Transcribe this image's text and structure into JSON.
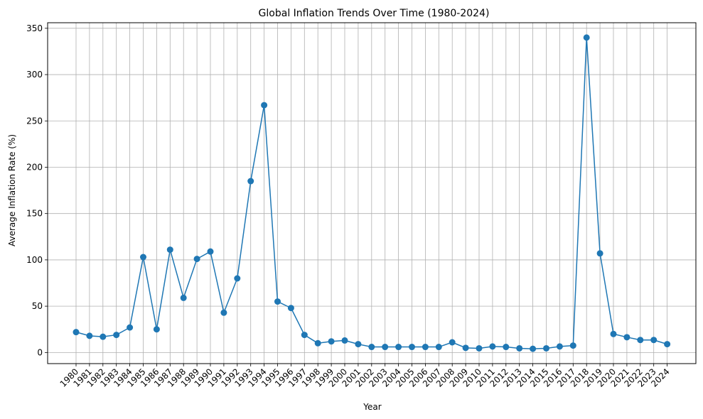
{
  "chart_data": {
    "type": "line",
    "title": "Global Inflation Trends Over Time (1980-2024)",
    "xlabel": "Year",
    "ylabel": "Average Inflation Rate (%)",
    "x": [
      "1980",
      "1981",
      "1982",
      "1983",
      "1984",
      "1985",
      "1986",
      "1987",
      "1988",
      "1989",
      "1990",
      "1991",
      "1992",
      "1993",
      "1994",
      "1995",
      "1996",
      "1997",
      "1998",
      "1999",
      "2000",
      "2001",
      "2002",
      "2003",
      "2004",
      "2005",
      "2006",
      "2007",
      "2008",
      "2009",
      "2010",
      "2011",
      "2012",
      "2013",
      "2014",
      "2015",
      "2016",
      "2017",
      "2018",
      "2019",
      "2020",
      "2021",
      "2022",
      "2023",
      "2024"
    ],
    "series": [
      {
        "values": [
          22,
          18,
          17,
          19,
          27,
          103,
          25,
          111,
          59,
          101,
          109,
          43,
          80,
          185,
          267,
          55,
          48,
          19,
          10,
          12,
          13,
          9,
          6,
          6,
          6,
          6,
          6,
          6,
          11,
          5,
          4.5,
          6.5,
          6,
          4.5,
          4,
          4.5,
          6.5,
          7.5,
          340,
          107,
          20,
          16.5,
          13.5,
          13.5,
          9
        ],
        "color": "#1f77b4"
      }
    ],
    "yticks": [
      0,
      50,
      100,
      150,
      200,
      250,
      300,
      350
    ],
    "ylim": [
      -12,
      356
    ],
    "grid": true,
    "xtick_rotation": 45
  }
}
